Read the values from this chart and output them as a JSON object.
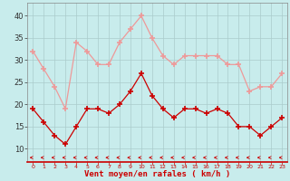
{
  "x": [
    0,
    1,
    2,
    3,
    4,
    5,
    6,
    7,
    8,
    9,
    10,
    11,
    12,
    13,
    14,
    15,
    16,
    17,
    18,
    19,
    20,
    21,
    22,
    23
  ],
  "vent_moyen": [
    19,
    16,
    13,
    11,
    15,
    19,
    19,
    18,
    20,
    23,
    27,
    22,
    19,
    17,
    19,
    19,
    18,
    19,
    18,
    15,
    15,
    13,
    15,
    17
  ],
  "rafales": [
    32,
    28,
    24,
    19,
    34,
    32,
    29,
    29,
    34,
    37,
    40,
    35,
    31,
    29,
    31,
    31,
    31,
    31,
    29,
    29,
    23,
    24,
    24,
    27
  ],
  "bg_color": "#c8ecec",
  "grid_color": "#aacccc",
  "line_mean_color": "#cc0000",
  "line_gust_color": "#ee9999",
  "xlabel": "Vent moyen/en rafales ( km/h )",
  "xlabel_color": "#cc0000",
  "ytick_color": "#333333",
  "xtick_color": "#cc0000",
  "yticks": [
    10,
    15,
    20,
    25,
    30,
    35,
    40
  ],
  "ylim": [
    7,
    43
  ],
  "xlim": [
    -0.5,
    23.5
  ]
}
